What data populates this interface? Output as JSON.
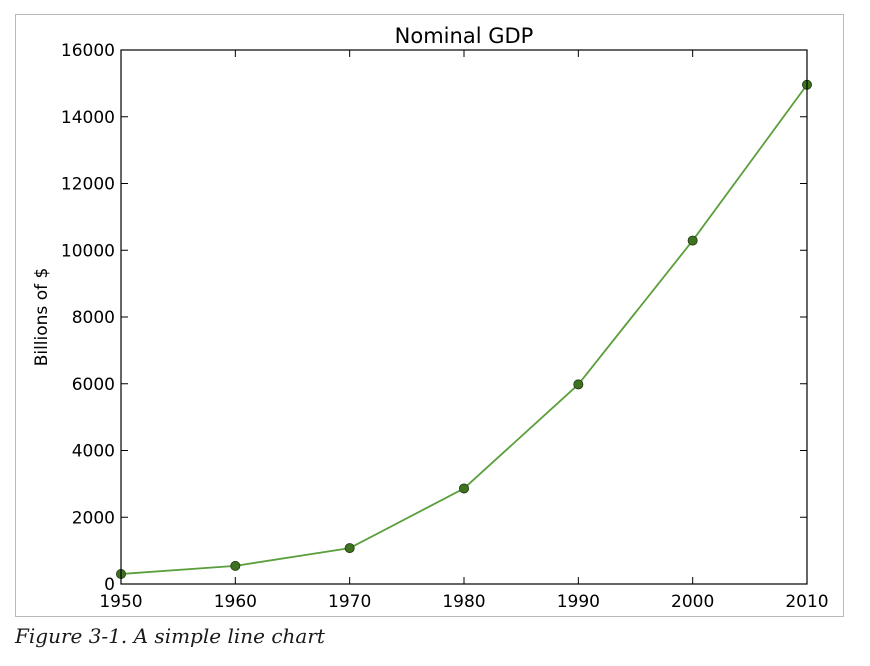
{
  "chart_data": {
    "type": "line",
    "title": "Nominal GDP",
    "xlabel": "",
    "ylabel": "Billions of $",
    "x": [
      1950,
      1960,
      1970,
      1980,
      1990,
      2000,
      2010
    ],
    "series": [
      {
        "values": [
          300.2,
          543.3,
          1075.9,
          2862.5,
          5979.6,
          10289.7,
          14958.3
        ],
        "color": "#5a9f3c",
        "marker_color": "#3f7220",
        "marker": "circle"
      }
    ],
    "xlim": [
      1950,
      2010
    ],
    "ylim": [
      0,
      16000
    ],
    "xticks": [
      1950,
      1960,
      1970,
      1980,
      1990,
      2000,
      2010
    ],
    "yticks": [
      0,
      2000,
      4000,
      6000,
      8000,
      10000,
      12000,
      14000,
      16000
    ],
    "grid": false,
    "legend": false
  },
  "caption": "Figure 3-1. A simple line chart"
}
